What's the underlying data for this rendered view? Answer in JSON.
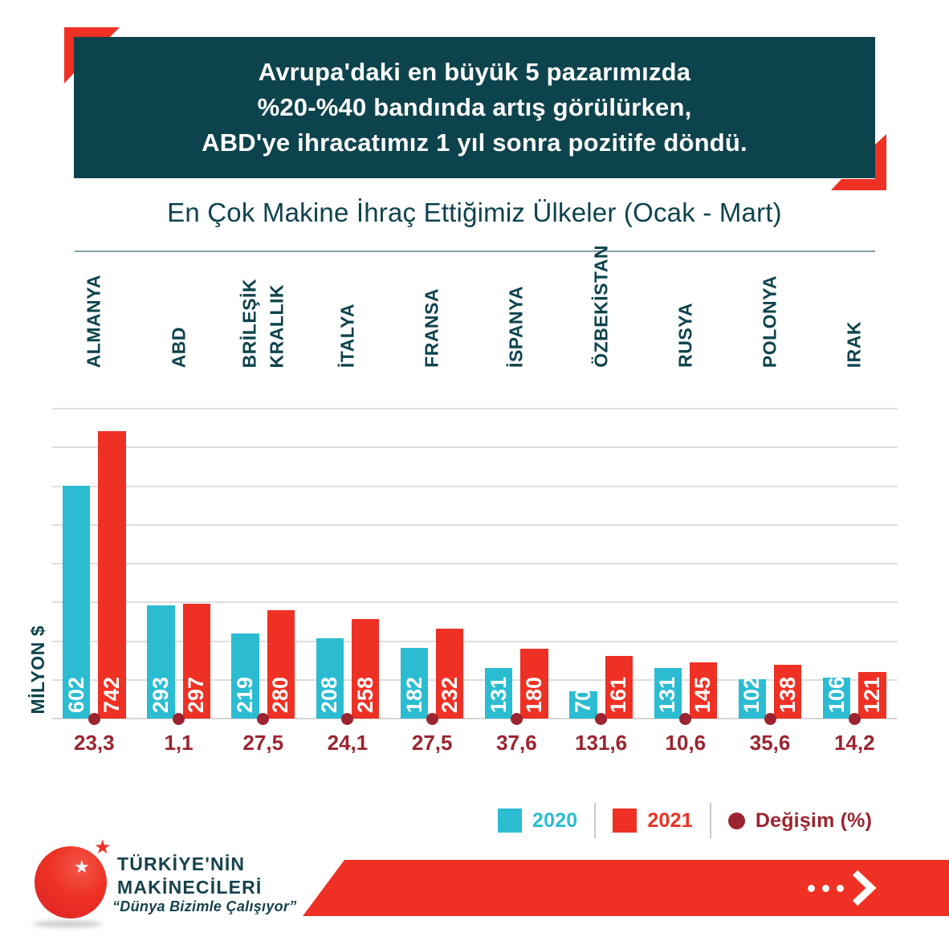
{
  "header": {
    "lines": [
      "Avrupa'daki en büyük 5 pazarımızda",
      "%20-%40 bandında artış görülürken,",
      "ABD'ye ihracatımız 1 yıl sonra pozitife döndü."
    ]
  },
  "subtitle": "En Çok Makine İhraç Ettiğimiz Ülkeler (Ocak - Mart)",
  "chart_data": {
    "type": "bar",
    "title": "En Çok Makine İhraç Ettiğimiz Ülkeler (Ocak - Mart)",
    "categories": [
      "ALMANYA",
      "ABD",
      "BRİLEŞİK\nKRALLIK",
      "İTALYA",
      "FRANSA",
      "İSPANYA",
      "ÖZBEKİSTAN",
      "RUSYA",
      "POLONYA",
      "IRAK"
    ],
    "series": [
      {
        "name": "2020",
        "color": "#2bbcd2",
        "values": [
          602,
          293,
          219,
          208,
          182,
          131,
          70,
          131,
          102,
          106
        ]
      },
      {
        "name": "2021",
        "color": "#ee3124",
        "values": [
          742,
          297,
          280,
          258,
          232,
          180,
          161,
          145,
          138,
          121
        ]
      }
    ],
    "change_percent": {
      "name": "Değişim (%)",
      "color": "#9b2430",
      "values": [
        "23,3",
        "1,1",
        "27,5",
        "24,1",
        "27,5",
        "37,6",
        "131,6",
        "10,6",
        "35,6",
        "14,2"
      ]
    },
    "xlabel": "",
    "ylabel": "MİLYON $",
    "ylim": [
      0,
      800
    ],
    "grid_step": 100,
    "grid": true,
    "legend_position": "bottom",
    "value_labels": "inside-bar-vertical"
  },
  "legend": {
    "items": [
      {
        "label": "2020",
        "swatch": "square",
        "color": "#2bbcd2"
      },
      {
        "label": "2021",
        "swatch": "square",
        "color": "#ee3124"
      },
      {
        "label": "Değişim (%)",
        "swatch": "circle",
        "color": "#9b2430"
      }
    ]
  },
  "footer": {
    "brand_line1": "TÜRKİYE'NİN",
    "brand_line2": "MAKİNECİLERİ",
    "tagline": "“Dünya Bizimle Çalışıyor”",
    "star_icon": "★"
  },
  "colors": {
    "teal": "#0d434c",
    "red": "#ee3124",
    "cyan": "#2bbcd2",
    "maroon": "#9b2430",
    "gridline": "#dedede"
  }
}
